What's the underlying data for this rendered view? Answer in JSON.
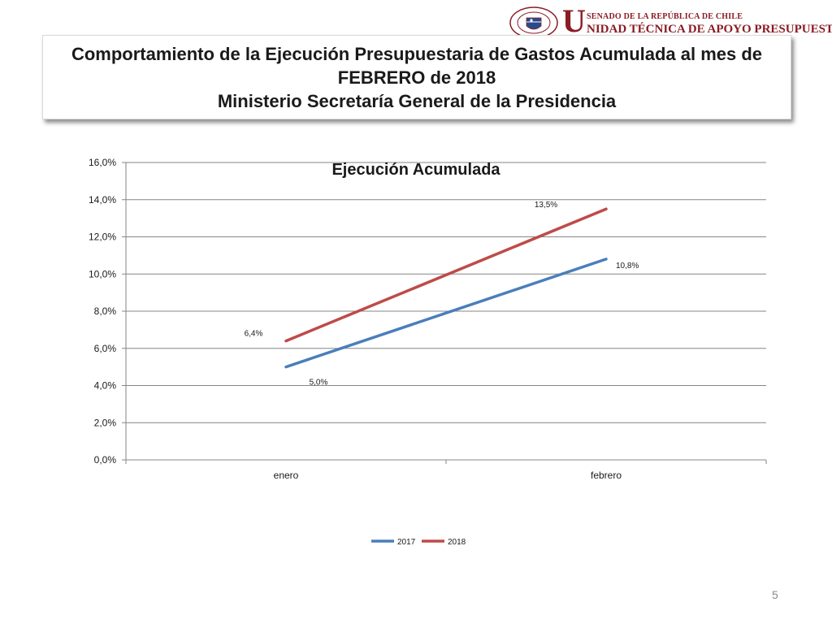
{
  "logo": {
    "line1": "SENADO DE LA REPÚBLICA DE CHILE",
    "letter": "U",
    "line2": "NIDAD TÉCNICA DE APOYO PRESUPUESTARIO"
  },
  "title": {
    "line1": "Comportamiento de la Ejecución Presupuestaria de Gastos Acumulada al mes de",
    "line2": "FEBRERO de 2018",
    "line3": "Ministerio Secretaría General de la Presidencia"
  },
  "chart_data": {
    "type": "line",
    "title": "Ejecución Acumulada",
    "categories": [
      "enero",
      "febrero"
    ],
    "series": [
      {
        "name": "2017",
        "values": [
          5.0,
          10.8
        ],
        "labels": [
          "5,0%",
          "10,8%"
        ],
        "color": "#4a7ebb"
      },
      {
        "name": "2018",
        "values": [
          6.4,
          13.5
        ],
        "labels": [
          "6,4%",
          "13,5%"
        ],
        "color": "#be4b48"
      }
    ],
    "ylim": [
      0,
      16
    ],
    "y_ticks": [
      "0,0%",
      "2,0%",
      "4,0%",
      "6,0%",
      "8,0%",
      "10,0%",
      "12,0%",
      "14,0%",
      "16,0%"
    ],
    "grid": true,
    "legend": "bottom"
  },
  "page_number": "5"
}
